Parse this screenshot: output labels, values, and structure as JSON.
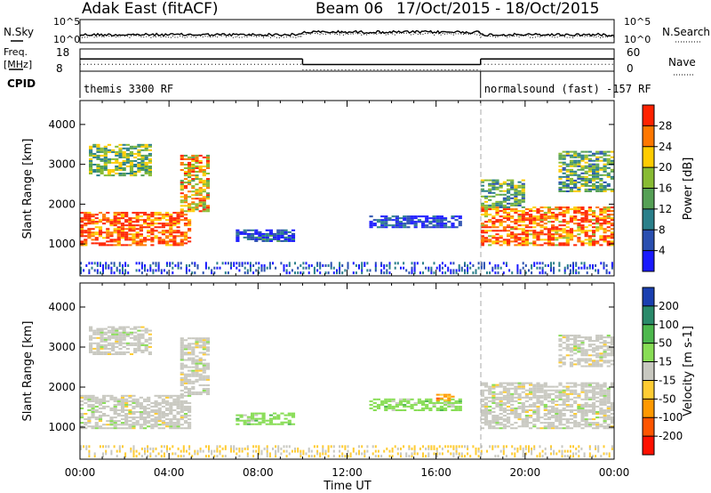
{
  "header": {
    "station": "Adak East (fitACF)",
    "beam": "Beam 06",
    "dates": "17/Oct/2015 - 18/Oct/2015"
  },
  "top_panels": {
    "nsky_label": "N.Sky",
    "nsky_ticks": [
      "10^5",
      "10^0"
    ],
    "nsearch_label": "N.Search",
    "nsearch_ticks": [
      "10^5",
      "10^0"
    ],
    "freq_label": "Freq.",
    "freq_unit": "[MHz]",
    "freq_ticks": [
      "18",
      "8"
    ],
    "nave_label": "Nave",
    "nave_ticks": [
      "60",
      "0"
    ],
    "cpid_label": "CPID",
    "cpid_segments": [
      {
        "start_hour": 0,
        "end_hour": 18,
        "text": "themis 3300 RF"
      },
      {
        "start_hour": 18,
        "end_hour": 24,
        "text": "normalsound (fast) -157 RF"
      }
    ],
    "freq_line_segments": [
      {
        "start_hour": 0,
        "end_hour": 10,
        "level": 0.55
      },
      {
        "start_hour": 10,
        "end_hour": 18,
        "level": 0.3
      },
      {
        "start_hour": 18,
        "end_hour": 24,
        "level": 0.55
      }
    ]
  },
  "chart_data": [
    {
      "type": "heatmap",
      "title": "Power",
      "ylabel": "Slant Range [km]",
      "xlabel": "",
      "x_ticks": [
        "00:00",
        "04:00",
        "08:00",
        "12:00",
        "16:00",
        "20:00",
        "00:00"
      ],
      "y_ticks": [
        1000,
        2000,
        3000,
        4000
      ],
      "ylim": [
        200,
        4600
      ],
      "xlim_hours": [
        0,
        24
      ],
      "colorbar_label": "Power [dB]",
      "colorbar_ticks": [
        4,
        8,
        12,
        16,
        20,
        24,
        28
      ],
      "colorbar_colors": [
        "#1a1aff",
        "#2a4fb0",
        "#2a7f8a",
        "#55a055",
        "#88bb33",
        "#ffcc00",
        "#ff7700",
        "#ff2200"
      ],
      "echo_regions": [
        {
          "hour_start": 0.0,
          "hour_end": 5.0,
          "range_low": 950,
          "range_high": 1800,
          "level": 0.9
        },
        {
          "hour_start": 4.5,
          "hour_end": 5.8,
          "range_low": 1800,
          "range_high": 3200,
          "level": 0.7
        },
        {
          "hour_start": 0.4,
          "hour_end": 3.2,
          "range_low": 2700,
          "range_high": 3500,
          "level": 0.5
        },
        {
          "hour_start": 7.0,
          "hour_end": 9.5,
          "range_low": 1050,
          "range_high": 1350,
          "level": 0.15
        },
        {
          "hour_start": 13.0,
          "hour_end": 17.0,
          "range_low": 1400,
          "range_high": 1700,
          "level": 0.12
        },
        {
          "hour_start": 18.0,
          "hour_end": 24.0,
          "range_low": 950,
          "range_high": 1900,
          "level": 0.85
        },
        {
          "hour_start": 18.0,
          "hour_end": 20.0,
          "range_low": 1900,
          "range_high": 2600,
          "level": 0.45
        },
        {
          "hour_start": 21.5,
          "hour_end": 24.0,
          "range_low": 2300,
          "range_high": 3300,
          "level": 0.45
        }
      ]
    },
    {
      "type": "heatmap",
      "title": "Velocity",
      "ylabel": "Slant Range [km]",
      "xlabel": "Time UT",
      "x_ticks": [
        "00:00",
        "04:00",
        "08:00",
        "12:00",
        "16:00",
        "20:00",
        "00:00"
      ],
      "y_ticks": [
        1000,
        2000,
        3000,
        4000
      ],
      "ylim": [
        200,
        4600
      ],
      "xlim_hours": [
        0,
        24
      ],
      "colorbar_label": "Velocity [m s-1]",
      "colorbar_ticks": [
        200,
        100,
        50,
        15,
        -15,
        -50,
        -100,
        -200
      ],
      "colorbar_colors": [
        "#1a3fb0",
        "#2a8a6a",
        "#4db84d",
        "#88dd55",
        "#c8c8c0",
        "#ffcc33",
        "#ff9900",
        "#ff5500",
        "#ff1100"
      ],
      "echo_regions": [
        {
          "hour_start": 0.0,
          "hour_end": 5.0,
          "range_low": 950,
          "range_high": 1800,
          "color_index": 4
        },
        {
          "hour_start": 4.5,
          "hour_end": 5.8,
          "range_low": 1800,
          "range_high": 3200,
          "color_index": 4
        },
        {
          "hour_start": 0.4,
          "hour_end": 3.2,
          "range_low": 2800,
          "range_high": 3500,
          "color_index": 4
        },
        {
          "hour_start": 7.0,
          "hour_end": 9.5,
          "range_low": 1050,
          "range_high": 1350,
          "color_index": 3
        },
        {
          "hour_start": 13.0,
          "hour_end": 17.0,
          "range_low": 1400,
          "range_high": 1700,
          "color_index": 3
        },
        {
          "hour_start": 16.0,
          "hour_end": 16.8,
          "range_low": 1650,
          "range_high": 1800,
          "color_index": 6
        },
        {
          "hour_start": 18.0,
          "hour_end": 24.0,
          "range_low": 950,
          "range_high": 2100,
          "color_index": 4
        },
        {
          "hour_start": 21.5,
          "hour_end": 24.0,
          "range_low": 2500,
          "range_high": 3300,
          "color_index": 4
        }
      ]
    }
  ]
}
